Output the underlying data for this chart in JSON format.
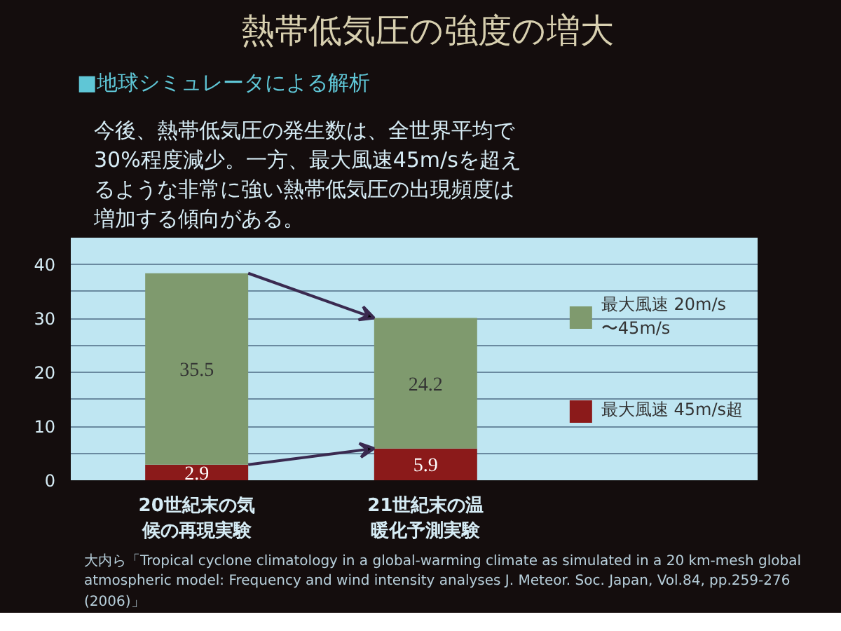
{
  "chart_data": {
    "type": "bar",
    "stacked": true,
    "title": "熱帯低気圧の強度の増大",
    "subtitle": "■地球シミュレータによる解析",
    "categories": [
      "20世紀末の気候の再現実験",
      "21世紀末の温暖化予測実験"
    ],
    "series": [
      {
        "name": "最大風速 45m/s超",
        "color": "#8b1a1a",
        "values": [
          2.9,
          5.9
        ]
      },
      {
        "name": "最大風速 20m/s\n〜45m/s",
        "color": "#7f9a6e",
        "values": [
          35.5,
          24.2
        ]
      }
    ],
    "ylim": [
      0,
      45
    ],
    "yticks": [
      0,
      {
        "value": 5,
        "label": null
      },
      10,
      {
        "value": 15,
        "label": null
      },
      20,
      {
        "value": 25,
        "label": null
      },
      30,
      {
        "value": 35,
        "label": null
      },
      40,
      {
        "value": 45,
        "label": null
      }
    ],
    "grid": "y",
    "legend": "right",
    "data_labels": true,
    "annotations": [
      "今後、熱帯低気圧の発生数は、全世界平均で30%程度減少。一方、最大風速45m/sを超えるような非常に強い熱帯低気圧の出現頻度は増加する傾向がある。",
      "大内ら「Tropical cyclone climatology in a global-warming climate as simulated in a 20 km-mesh global atmospheric model: Frequency and wind intensity analyses J. Meteor. Soc. Japan, Vol.84, pp.259-276 (2006)」"
    ]
  }
}
